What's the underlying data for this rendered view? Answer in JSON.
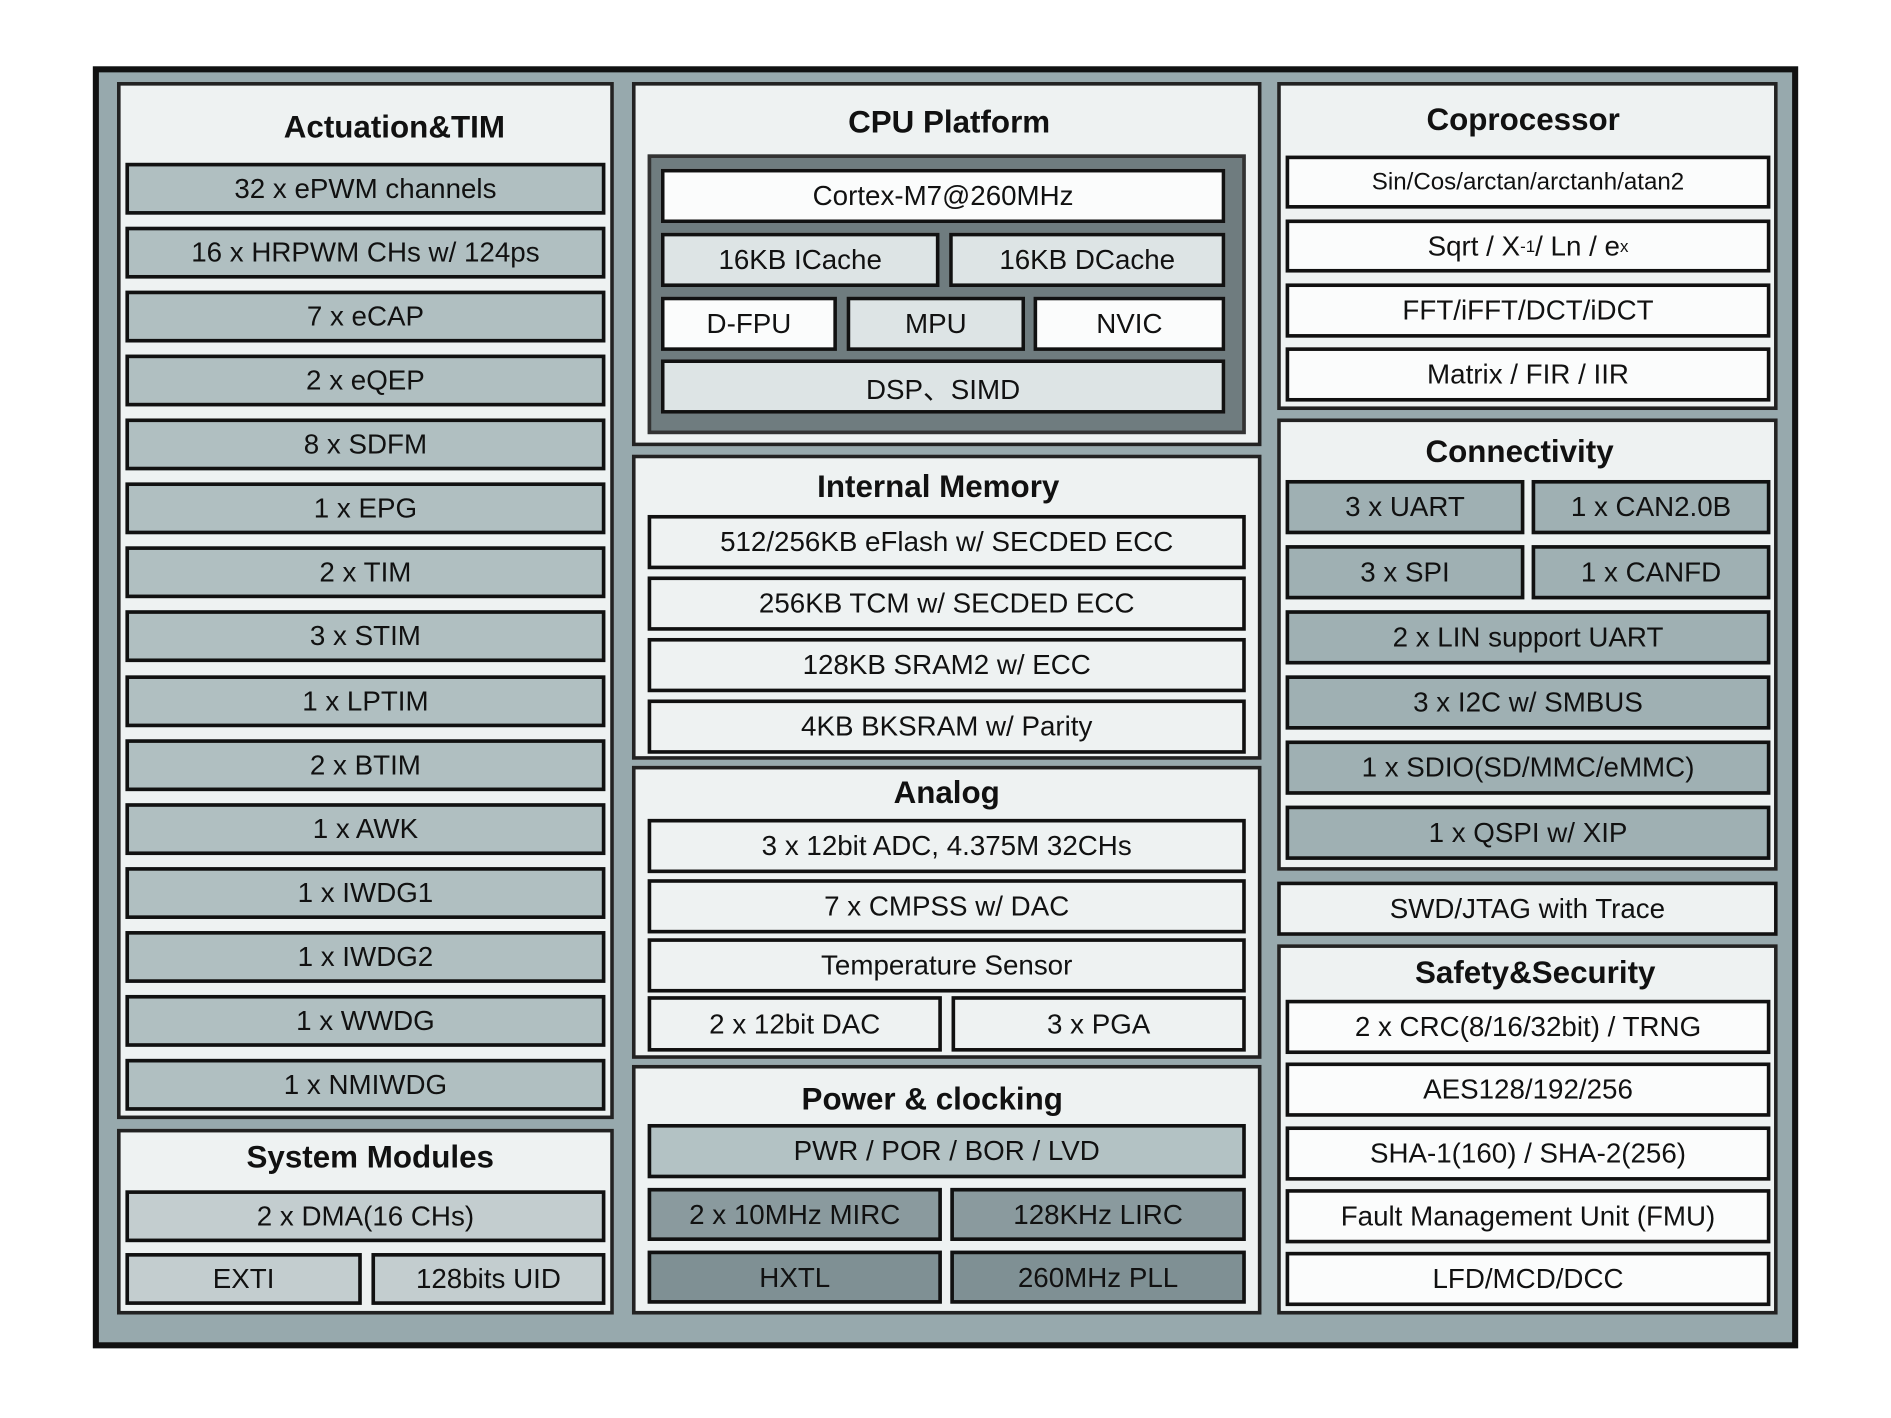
{
  "colors": {
    "frame": "#97a9ad",
    "panel": "#eef2f2",
    "actuation_item": "#b0bfc1",
    "connectivity_item": "#9fb0b3",
    "cpu_core": "#6f7c7f",
    "power_row1": "#b3c2c4",
    "power_row2": "#8a9a9e",
    "power_row3": "#7f9094"
  },
  "actuation": {
    "title": "Actuation&TIM",
    "items": [
      "32 x ePWM channels",
      "16 x HRPWM CHs w/ 124ps",
      "7 x eCAP",
      "2 x eQEP",
      "8 x SDFM",
      "1 x EPG",
      "2 x TIM",
      "3 x STIM",
      "1 x LPTIM",
      "2 x BTIM",
      "1 x AWK",
      "1 x IWDG1",
      "1 x IWDG2",
      "1 x WWDG",
      "1 x NMIWDG"
    ]
  },
  "system": {
    "title": "System Modules",
    "items": [
      "2 x DMA(16 CHs)",
      "EXTI",
      "128bits UID"
    ]
  },
  "cpu": {
    "title": "CPU Platform",
    "items": [
      "Cortex-M7@260MHz",
      "16KB ICache",
      "16KB DCache",
      "D-FPU",
      "MPU",
      "NVIC",
      "DSP、SIMD"
    ]
  },
  "memory": {
    "title": "Internal Memory",
    "items": [
      "512/256KB eFlash w/ SECDED ECC",
      "256KB TCM w/ SECDED ECC",
      "128KB SRAM2 w/ ECC",
      "4KB BKSRAM w/ Parity"
    ]
  },
  "analog": {
    "title": "Analog",
    "items": [
      "3 x 12bit ADC, 4.375M 32CHs",
      "7 x CMPSS w/ DAC",
      "Temperature Sensor",
      "2 x 12bit DAC",
      "3 x PGA"
    ]
  },
  "power": {
    "title": "Power & clocking",
    "items": [
      "PWR / POR / BOR / LVD",
      "2 x 10MHz MIRC",
      "128KHz LIRC",
      "HXTL",
      "260MHz PLL"
    ]
  },
  "coprocessor": {
    "title": "Coprocessor",
    "items": [
      "Sin/Cos/arctan/arctanh/atan2",
      "FFT/iFFT/DCT/iDCT",
      "Matrix / FIR / IIR"
    ],
    "sqrt_parts": [
      "Sqrt / X",
      "-1",
      " / Ln / e",
      "x"
    ]
  },
  "connectivity": {
    "title": "Connectivity",
    "items": [
      "3 x UART",
      "1 x CAN2.0B",
      "3 x SPI",
      "1 x CANFD",
      "2 x LIN support UART",
      "3 x I2C w/ SMBUS",
      "1 x SDIO(SD/MMC/eMMC)",
      "1 x QSPI w/ XIP"
    ]
  },
  "debug": {
    "label": "SWD/JTAG with Trace"
  },
  "safety": {
    "title": "Safety&Security",
    "items": [
      "2 x CRC(8/16/32bit) / TRNG",
      "AES128/192/256",
      "SHA-1(160) / SHA-2(256)",
      "Fault Management Unit (FMU)",
      "LFD/MCD/DCC"
    ]
  }
}
